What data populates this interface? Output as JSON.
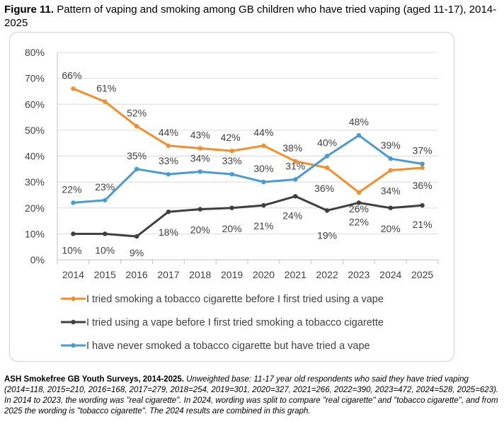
{
  "figure": {
    "label": "Figure 11.",
    "title": "Pattern of vaping and smoking among GB children who have tried vaping (aged 11-17), 2014-2025"
  },
  "footnote": {
    "source": "ASH Smokefree GB Youth Surveys, 2014-2025.",
    "text": "Unweighted base: 11-17 year old respondents who said they have tried vaping (2014=118, 2015=210, 2016=168, 2017=279, 2018=254, 2019=301, 2020=327, 2021=266, 2022=390, 2023=472, 2024=528, 2025=623). In 2014 to 2023, the wording was \"real cigarette\". In 2024, wording was split to compare \"real cigarette\" and \"tobacco cigarette\", and from 2025 the wording is \"tobacco cigarette\". The 2024 results are combined in this graph."
  },
  "chart_data": {
    "type": "line",
    "title": "",
    "xlabel": "",
    "ylabel": "",
    "x": [
      "2014",
      "2015",
      "2016",
      "2017",
      "2018",
      "2019",
      "2020",
      "2021",
      "2022",
      "2023",
      "2024",
      "2025"
    ],
    "ylim": [
      0,
      80
    ],
    "yticks": [
      "0%",
      "10%",
      "20%",
      "30%",
      "40%",
      "50%",
      "60%",
      "70%",
      "80%"
    ],
    "grid": true,
    "legend_position": "bottom",
    "series": [
      {
        "name": "I tried smoking a tobacco cigarette before I first tried using a vape",
        "color": "#F28E2B",
        "values": [
          66,
          61,
          51.5,
          44,
          43,
          42,
          44,
          38,
          35.5,
          26,
          34.5,
          35.5
        ],
        "labels": [
          "66%",
          "61%",
          "52%",
          "44%",
          "43%",
          "42%",
          "44%",
          "38%",
          "36%",
          "26%",
          "34%",
          "36%"
        ]
      },
      {
        "name": "I tried using a vape before I first tried smoking a tobacco cigarette",
        "color": "#3F3F3F",
        "values": [
          10,
          10,
          9,
          18.5,
          19.5,
          20,
          21,
          24.5,
          19,
          22,
          20,
          21
        ],
        "labels": [
          "10%",
          "10%",
          "9%",
          "18%",
          "20%",
          "20%",
          "21%",
          "24%",
          "19%",
          "22%",
          "20%",
          "21%"
        ]
      },
      {
        "name": "I have never smoked a tobacco cigarette but have tried a vape",
        "color": "#4A9BD0",
        "values": [
          22,
          23,
          35,
          33,
          34,
          33,
          30,
          31,
          40,
          48,
          39,
          37
        ],
        "labels": [
          "22%",
          "23%",
          "35%",
          "33%",
          "34%",
          "33%",
          "30%",
          "31%",
          "40%",
          "48%",
          "39%",
          "37%"
        ]
      }
    ]
  }
}
